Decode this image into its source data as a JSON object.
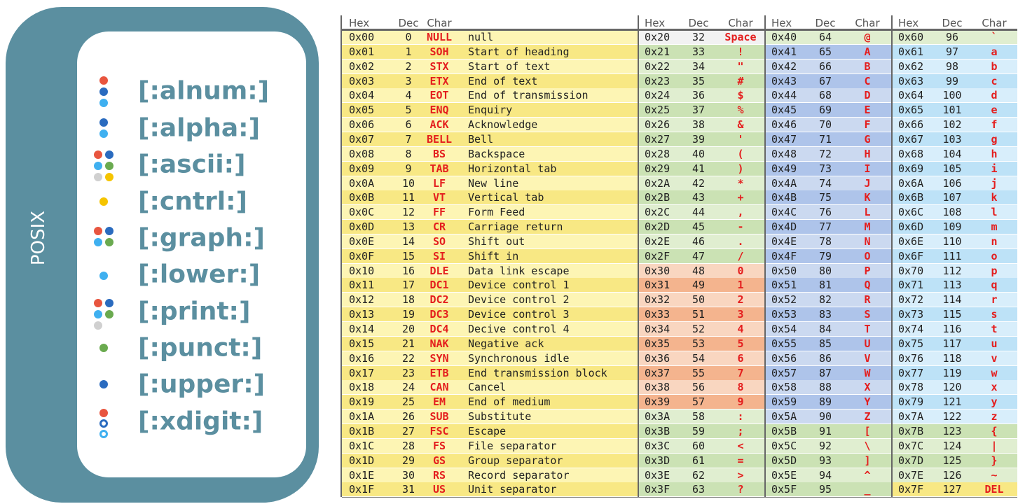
{
  "posix": {
    "title": "POSIX",
    "classes": [
      "[:alnum:]",
      "[:alpha:]",
      "[:ascii:]",
      "[:cntrl:]",
      "[:graph:]",
      "[:lower:]",
      "[:print:]",
      "[:punct:]",
      "[:upper:]",
      "[:xdigit:]"
    ]
  },
  "table": {
    "groups": [
      {
        "headers": [
          "Hex",
          "Dec",
          "Char"
        ],
        "rows": [
          [
            "0x00",
            0,
            "NULL",
            "null"
          ],
          [
            "0x01",
            1,
            "SOH",
            "Start of heading"
          ],
          [
            "0x02",
            2,
            "STX",
            "Start of text"
          ],
          [
            "0x03",
            3,
            "ETX",
            "End of text"
          ],
          [
            "0x04",
            4,
            "EOT",
            "End of transmission"
          ],
          [
            "0x05",
            5,
            "ENQ",
            "Enquiry"
          ],
          [
            "0x06",
            6,
            "ACK",
            "Acknowledge"
          ],
          [
            "0x07",
            7,
            "BELL",
            "Bell"
          ],
          [
            "0x08",
            8,
            "BS",
            "Backspace"
          ],
          [
            "0x09",
            9,
            "TAB",
            "Horizontal tab"
          ],
          [
            "0x0A",
            10,
            "LF",
            "New line"
          ],
          [
            "0x0B",
            11,
            "VT",
            "Vertical tab"
          ],
          [
            "0x0C",
            12,
            "FF",
            "Form Feed"
          ],
          [
            "0x0D",
            13,
            "CR",
            "Carriage return"
          ],
          [
            "0x0E",
            14,
            "SO",
            "Shift out"
          ],
          [
            "0x0F",
            15,
            "SI",
            "Shift in"
          ],
          [
            "0x10",
            16,
            "DLE",
            "Data link escape"
          ],
          [
            "0x11",
            17,
            "DC1",
            "Device control 1"
          ],
          [
            "0x12",
            18,
            "DC2",
            "Device control 2"
          ],
          [
            "0x13",
            19,
            "DC3",
            "Device control 3"
          ],
          [
            "0x14",
            20,
            "DC4",
            "Decive control 4"
          ],
          [
            "0x15",
            21,
            "NAK",
            "Negative ack"
          ],
          [
            "0x16",
            22,
            "SYN",
            "Synchronous idle"
          ],
          [
            "0x17",
            23,
            "ETB",
            "End transmission block"
          ],
          [
            "0x18",
            24,
            "CAN",
            "Cancel"
          ],
          [
            "0x19",
            25,
            "EM",
            "End of medium"
          ],
          [
            "0x1A",
            26,
            "SUB",
            "Substitute"
          ],
          [
            "0x1B",
            27,
            "FSC",
            "Escape"
          ],
          [
            "0x1C",
            28,
            "FS",
            "File separator"
          ],
          [
            "0x1D",
            29,
            "GS",
            "Group separator"
          ],
          [
            "0x1E",
            30,
            "RS",
            "Record separator"
          ],
          [
            "0x1F",
            31,
            "US",
            "Unit separator"
          ]
        ]
      },
      {
        "headers": [
          "Hex",
          "Dec",
          "Char"
        ],
        "rows": [
          [
            "0x20",
            32,
            "Space"
          ],
          [
            "0x21",
            33,
            "!"
          ],
          [
            "0x22",
            34,
            "\""
          ],
          [
            "0x23",
            35,
            "#"
          ],
          [
            "0x24",
            36,
            "$"
          ],
          [
            "0x25",
            37,
            "%"
          ],
          [
            "0x26",
            38,
            "&"
          ],
          [
            "0x27",
            39,
            "'"
          ],
          [
            "0x28",
            40,
            "("
          ],
          [
            "0x29",
            41,
            ")"
          ],
          [
            "0x2A",
            42,
            "*"
          ],
          [
            "0x2B",
            43,
            "+"
          ],
          [
            "0x2C",
            44,
            ","
          ],
          [
            "0x2D",
            45,
            "-"
          ],
          [
            "0x2E",
            46,
            "."
          ],
          [
            "0x2F",
            47,
            "/"
          ],
          [
            "0x30",
            48,
            "0"
          ],
          [
            "0x31",
            49,
            "1"
          ],
          [
            "0x32",
            50,
            "2"
          ],
          [
            "0x33",
            51,
            "3"
          ],
          [
            "0x34",
            52,
            "4"
          ],
          [
            "0x35",
            53,
            "5"
          ],
          [
            "0x36",
            54,
            "6"
          ],
          [
            "0x37",
            55,
            "7"
          ],
          [
            "0x38",
            56,
            "8"
          ],
          [
            "0x39",
            57,
            "9"
          ],
          [
            "0x3A",
            58,
            ":"
          ],
          [
            "0x3B",
            59,
            ";"
          ],
          [
            "0x3C",
            60,
            "<"
          ],
          [
            "0x3D",
            61,
            "="
          ],
          [
            "0x3E",
            62,
            ">"
          ],
          [
            "0x3F",
            63,
            "?"
          ]
        ]
      },
      {
        "headers": [
          "Hex",
          "Dec",
          "Char"
        ],
        "rows": [
          [
            "0x40",
            64,
            "@"
          ],
          [
            "0x41",
            65,
            "A"
          ],
          [
            "0x42",
            66,
            "B"
          ],
          [
            "0x43",
            67,
            "C"
          ],
          [
            "0x44",
            68,
            "D"
          ],
          [
            "0x45",
            69,
            "E"
          ],
          [
            "0x46",
            70,
            "F"
          ],
          [
            "0x47",
            71,
            "G"
          ],
          [
            "0x48",
            72,
            "H"
          ],
          [
            "0x49",
            73,
            "I"
          ],
          [
            "0x4A",
            74,
            "J"
          ],
          [
            "0x4B",
            75,
            "K"
          ],
          [
            "0x4C",
            76,
            "L"
          ],
          [
            "0x4D",
            77,
            "M"
          ],
          [
            "0x4E",
            78,
            "N"
          ],
          [
            "0x4F",
            79,
            "O"
          ],
          [
            "0x50",
            80,
            "P"
          ],
          [
            "0x51",
            81,
            "Q"
          ],
          [
            "0x52",
            82,
            "R"
          ],
          [
            "0x53",
            83,
            "S"
          ],
          [
            "0x54",
            84,
            "T"
          ],
          [
            "0x55",
            85,
            "U"
          ],
          [
            "0x56",
            86,
            "V"
          ],
          [
            "0x57",
            87,
            "W"
          ],
          [
            "0x58",
            88,
            "X"
          ],
          [
            "0x59",
            89,
            "Y"
          ],
          [
            "0x5A",
            90,
            "Z"
          ],
          [
            "0x5B",
            91,
            "["
          ],
          [
            "0x5C",
            92,
            "\\"
          ],
          [
            "0x5D",
            93,
            "]"
          ],
          [
            "0x5E",
            94,
            "^"
          ],
          [
            "0x5F",
            95,
            "_"
          ]
        ]
      },
      {
        "headers": [
          "Hex",
          "Dec",
          "Char"
        ],
        "rows": [
          [
            "0x60",
            96,
            "`"
          ],
          [
            "0x61",
            97,
            "a"
          ],
          [
            "0x62",
            98,
            "b"
          ],
          [
            "0x63",
            99,
            "c"
          ],
          [
            "0x64",
            100,
            "d"
          ],
          [
            "0x65",
            101,
            "e"
          ],
          [
            "0x66",
            102,
            "f"
          ],
          [
            "0x67",
            103,
            "g"
          ],
          [
            "0x68",
            104,
            "h"
          ],
          [
            "0x69",
            105,
            "i"
          ],
          [
            "0x6A",
            106,
            "j"
          ],
          [
            "0x6B",
            107,
            "k"
          ],
          [
            "0x6C",
            108,
            "l"
          ],
          [
            "0x6D",
            109,
            "m"
          ],
          [
            "0x6E",
            110,
            "n"
          ],
          [
            "0x6F",
            111,
            "o"
          ],
          [
            "0x70",
            112,
            "p"
          ],
          [
            "0x71",
            113,
            "q"
          ],
          [
            "0x72",
            114,
            "r"
          ],
          [
            "0x73",
            115,
            "s"
          ],
          [
            "0x74",
            116,
            "t"
          ],
          [
            "0x75",
            117,
            "u"
          ],
          [
            "0x76",
            118,
            "v"
          ],
          [
            "0x77",
            119,
            "w"
          ],
          [
            "0x78",
            120,
            "x"
          ],
          [
            "0x79",
            121,
            "y"
          ],
          [
            "0x7A",
            122,
            "z"
          ],
          [
            "0x7B",
            123,
            "{"
          ],
          [
            "0x7C",
            124,
            "|"
          ],
          [
            "0x7D",
            125,
            "}"
          ],
          [
            "0x7E",
            126,
            "~"
          ],
          [
            "0x7F",
            127,
            "DEL"
          ]
        ]
      }
    ]
  }
}
